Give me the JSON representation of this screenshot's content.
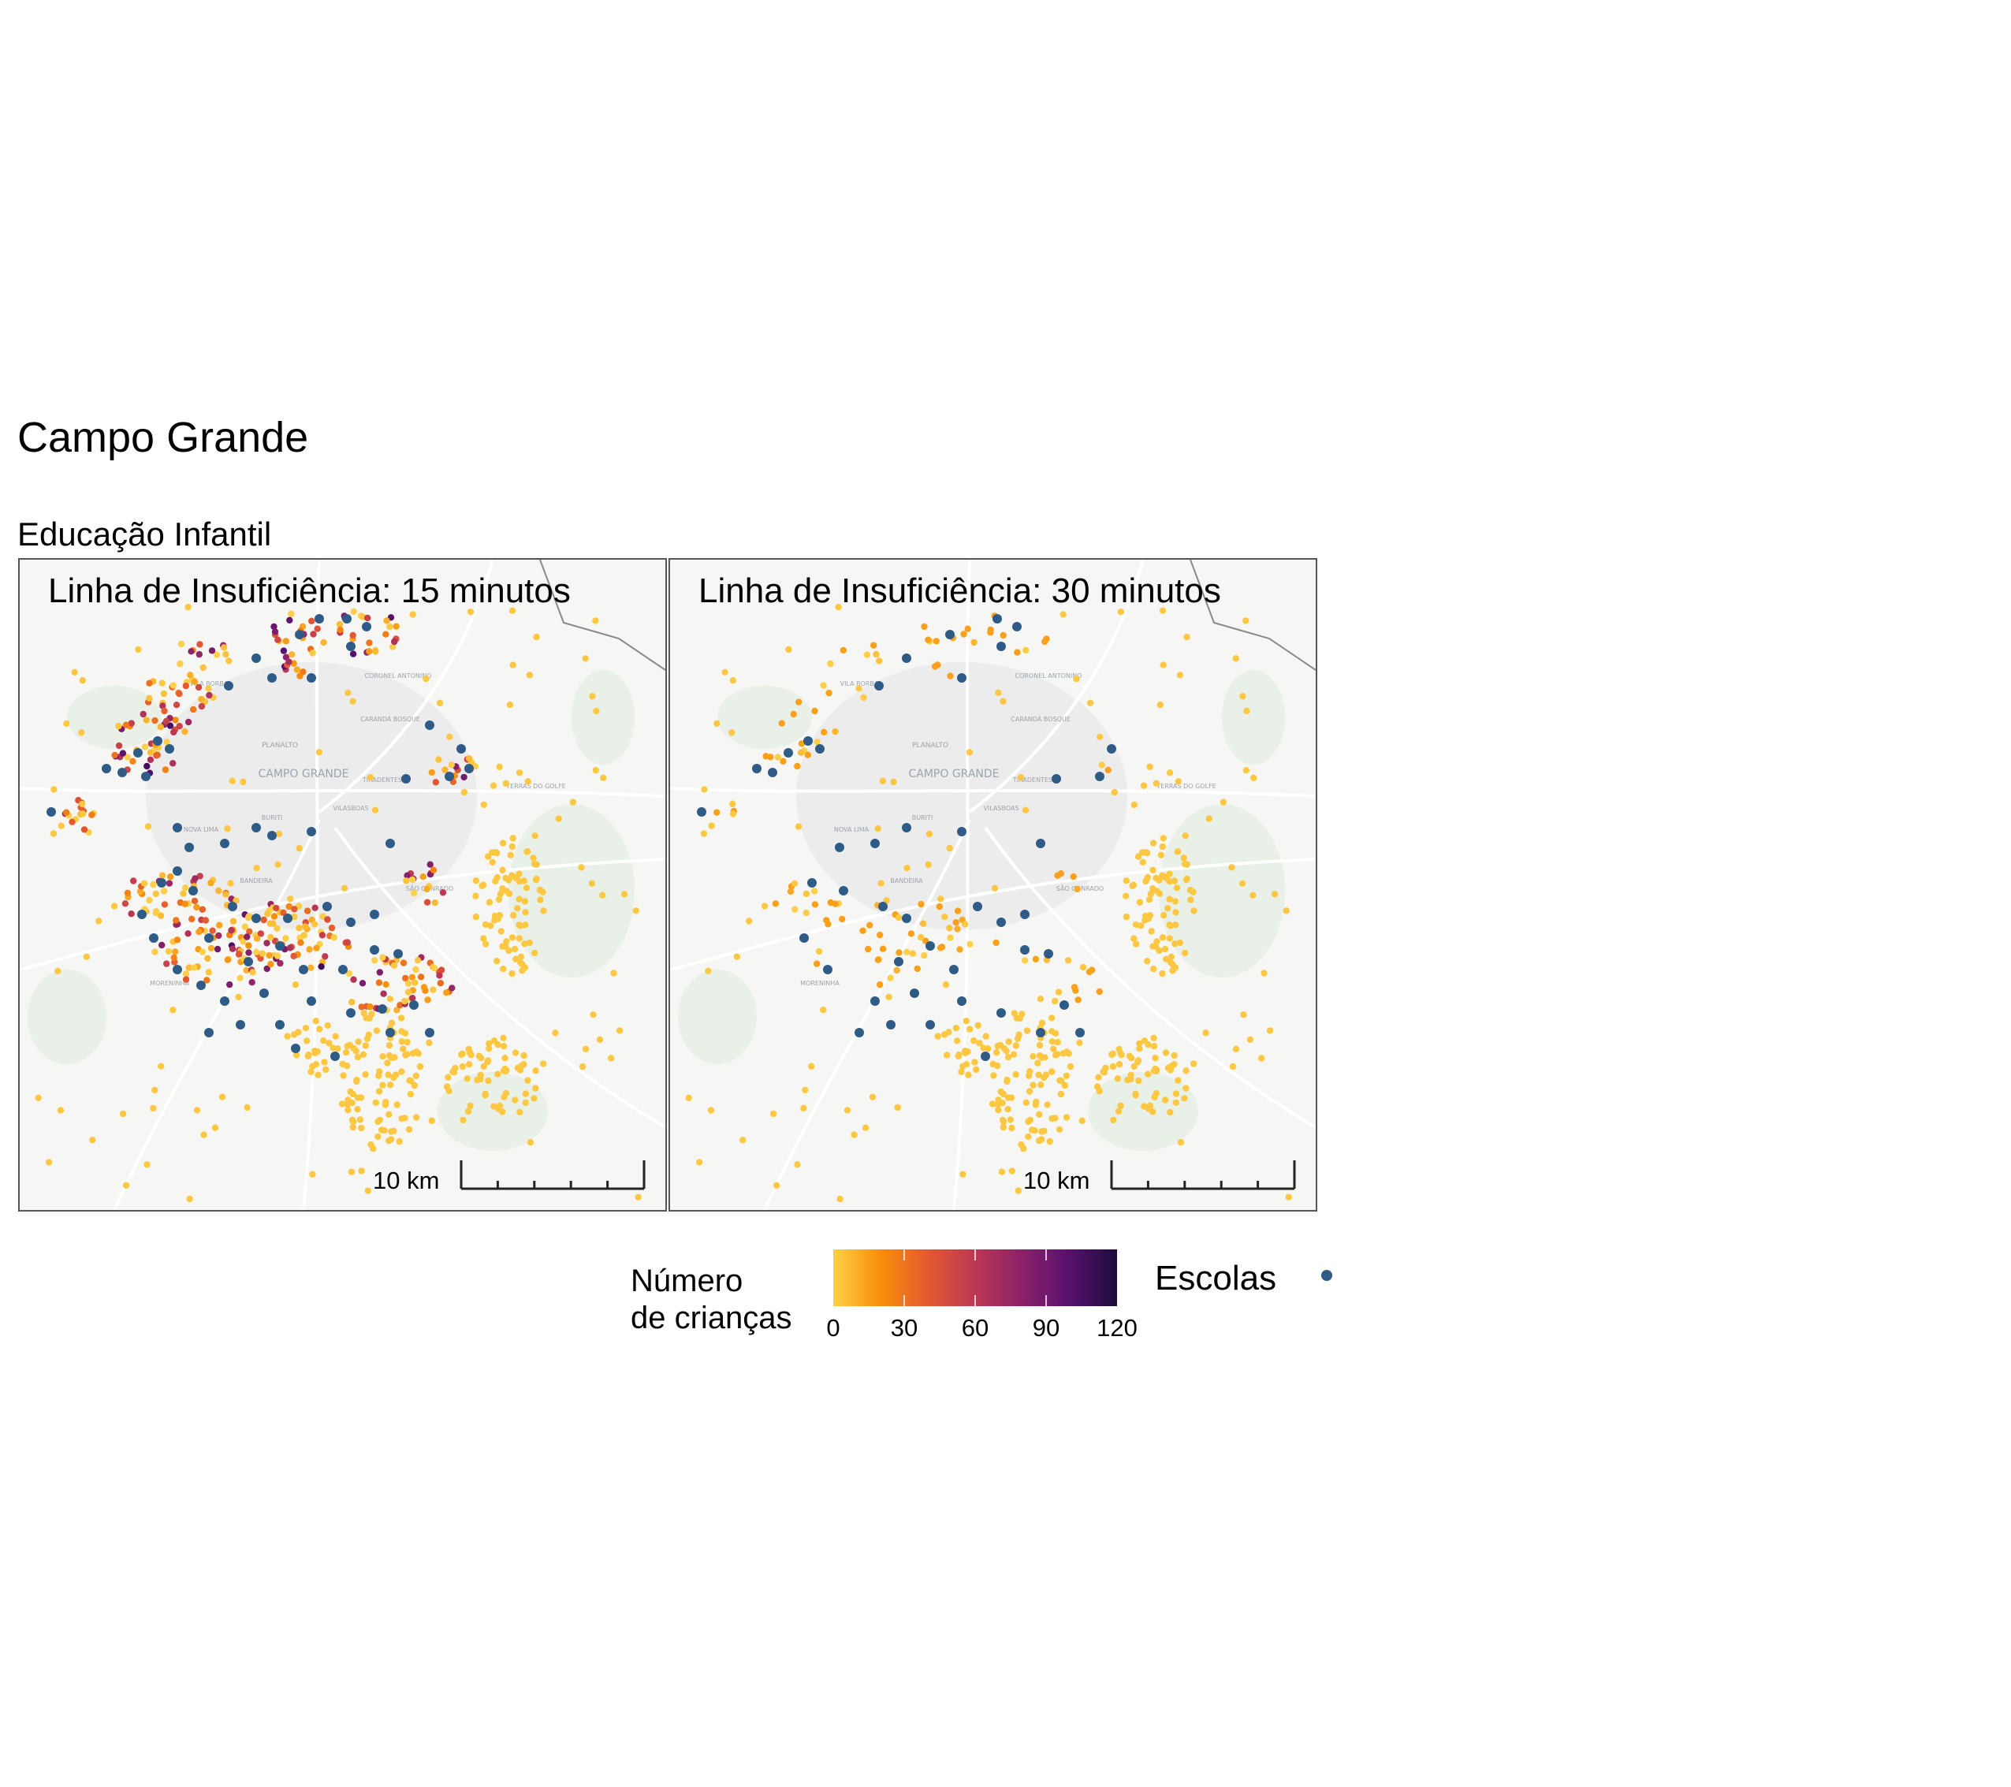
{
  "title": "Campo Grande",
  "subtitle": "Educação Infantil",
  "panels": [
    {
      "id": "p15",
      "title": "Linha de Insuficiência: 15 minutos"
    },
    {
      "id": "p30",
      "title": "Linha de Insuficiência: 30 minutos"
    }
  ],
  "scalebar": {
    "label": "10 km"
  },
  "basemap_labels": [
    "CAMPO GRANDE",
    "PLANALTO",
    "CARANDÁ BOSQUE",
    "CORONEL ANTONINO",
    "VILA BORBA",
    "TIRADENTES",
    "VILASBOAS",
    "TERRAS DO GOLFE",
    "BURITI",
    "NOVA LIMA",
    "BANDEIRA",
    "CHÁCARA DOS PODERES",
    "SÃO CONRADO",
    "MORENINHA"
  ],
  "legend": {
    "fill_title": "Número\nde crianças",
    "fill_ticks": [
      "0",
      "30",
      "60",
      "90",
      "120"
    ],
    "fill_range": [
      0,
      120
    ],
    "colormap": [
      "#fcd04b",
      "#f98e09",
      "#e35932",
      "#bc3754",
      "#8a226a",
      "#57106e",
      "#1d0c3a"
    ],
    "points_title": "Escolas",
    "school_color": "#2f5b87"
  }
}
